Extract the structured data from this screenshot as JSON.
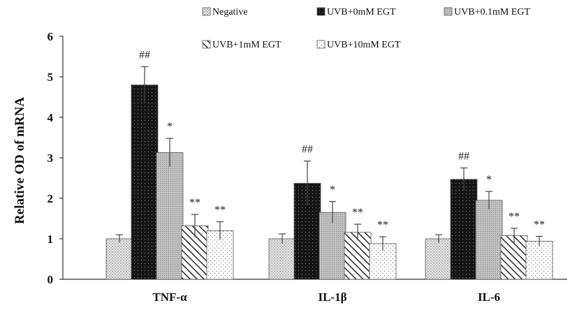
{
  "chart_data": {
    "type": "bar",
    "title": "",
    "xlabel": "",
    "ylabel": "Relative OD of mRNA",
    "ylim": [
      0,
      6
    ],
    "yticks": [
      0,
      1,
      2,
      3,
      4,
      5,
      6
    ],
    "categories": [
      "TNF-α",
      "IL-1β",
      "IL-6"
    ],
    "series": [
      {
        "name": "Negative",
        "values": [
          1.0,
          1.0,
          1.0
        ],
        "errors": [
          0.1,
          0.12,
          0.1
        ],
        "annotations": [
          "",
          "",
          ""
        ],
        "fill": "#e2e2e2",
        "pattern": "fine-dots"
      },
      {
        "name": "UVB+0mM EGT",
        "values": [
          4.8,
          2.37,
          2.47
        ],
        "errors": [
          0.45,
          0.55,
          0.28
        ],
        "annotations": [
          "##",
          "##",
          "##"
        ],
        "fill": "#161616",
        "pattern": "dark-dots"
      },
      {
        "name": "UVB+0.1mM EGT",
        "values": [
          3.13,
          1.65,
          1.95
        ],
        "errors": [
          0.35,
          0.27,
          0.22
        ],
        "annotations": [
          "*",
          "*",
          "*"
        ],
        "fill": "#bdbdbd",
        "pattern": "dense-dots"
      },
      {
        "name": "UVB+1mM EGT",
        "values": [
          1.32,
          1.16,
          1.08
        ],
        "errors": [
          0.28,
          0.2,
          0.18
        ],
        "annotations": [
          "**",
          "**",
          "**"
        ],
        "fill": "#ffffff",
        "pattern": "diagonal"
      },
      {
        "name": "UVB+10mM EGT",
        "values": [
          1.2,
          0.88,
          0.94
        ],
        "errors": [
          0.22,
          0.17,
          0.12
        ],
        "annotations": [
          "**",
          "**",
          "**"
        ],
        "fill": "#fbfbfb",
        "pattern": "sparse-dots"
      }
    ],
    "legend": {
      "placement": "top-right",
      "columns": 3
    },
    "grid": false
  }
}
